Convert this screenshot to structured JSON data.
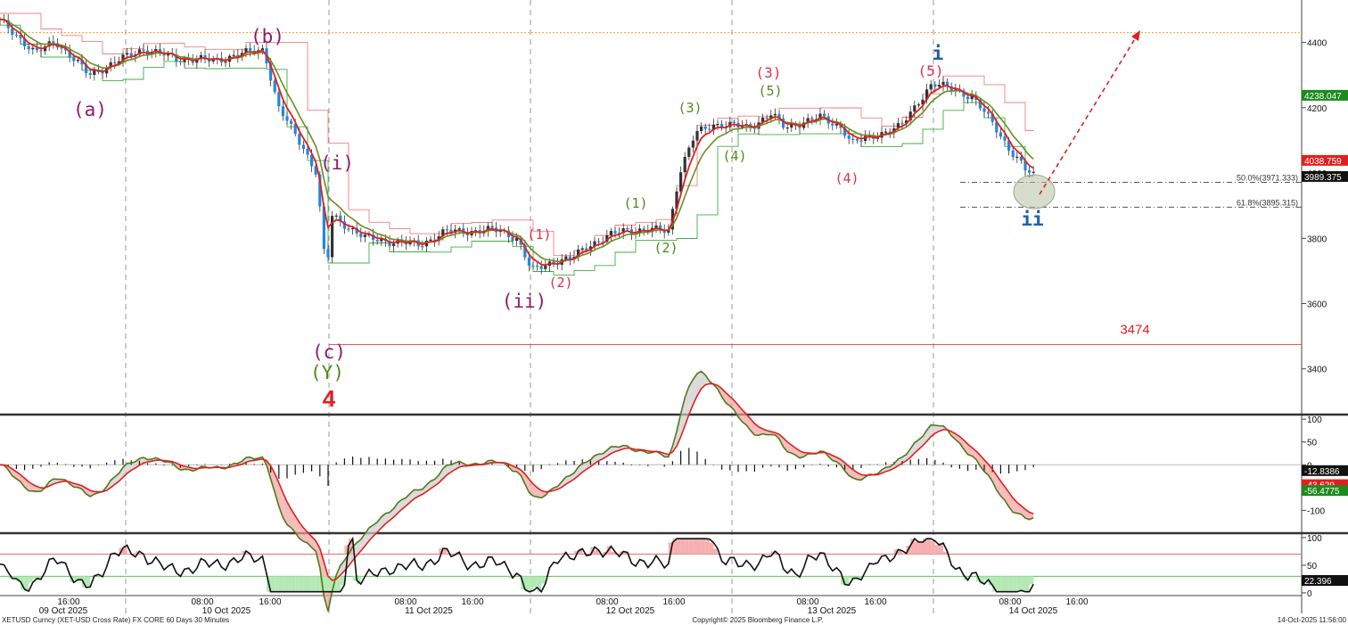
{
  "chart_data": [
    {
      "type": "candlestick",
      "panel": "price",
      "y_ticks": [
        "4400",
        "4200",
        "4000",
        "3800",
        "3600",
        "3400"
      ],
      "ylim": [
        3260,
        4530
      ],
      "price_tags": [
        {
          "label": "4238.047",
          "value": 4238.047,
          "color": "#1d8a1d"
        },
        {
          "label": "4038.759",
          "value": 4038.759,
          "color": "#e02020"
        },
        {
          "label": "3989.375",
          "value": 3989.375,
          "color": "#111111"
        }
      ],
      "levels": [
        {
          "label": "50.0%(3971.333)",
          "value": 3971.333
        },
        {
          "label": "61.8%(3895.315)",
          "value": 3895.315
        }
      ],
      "support_label": "3474",
      "support_value": 3474,
      "resistance_value": 4430,
      "wave_labels": [
        {
          "text": "(a)",
          "color": "#8e1b6b"
        },
        {
          "text": "(b)",
          "color": "#8e1b6b"
        },
        {
          "text": "(i)",
          "color": "#8e1b6b"
        },
        {
          "text": "(c)",
          "color": "#8e1b6b"
        },
        {
          "text": "(Y)",
          "color": "#4f8a1a"
        },
        {
          "text": "4",
          "color": "#e02020"
        },
        {
          "text": "(ii)",
          "color": "#8e1b6b"
        },
        {
          "text": "(1)",
          "color": "#e0304a"
        },
        {
          "text": "(2)",
          "color": "#e0304a"
        },
        {
          "text": "(1)",
          "color": "#4f8a1a"
        },
        {
          "text": "(2)",
          "color": "#4f8a1a"
        },
        {
          "text": "(3)",
          "color": "#4f8a1a"
        },
        {
          "text": "(4)",
          "color": "#4f8a1a"
        },
        {
          "text": "(3)",
          "color": "#e0304a"
        },
        {
          "text": "(5)",
          "color": "#4f8a1a"
        },
        {
          "text": "(4)",
          "color": "#e0304a"
        },
        {
          "text": "(5)",
          "color": "#e0304a"
        },
        {
          "text": "i",
          "color": "#1f5fa8"
        },
        {
          "text": "ii",
          "color": "#1f5fa8"
        }
      ]
    },
    {
      "type": "line",
      "panel": "oscillator",
      "y_ticks": [
        "100",
        "50",
        "0",
        "-100"
      ],
      "ylim": [
        -150,
        110
      ],
      "price_tags": [
        {
          "label": "-12.8386",
          "value": -12.8386,
          "color": "#111111"
        },
        {
          "label": "-43.629",
          "value": -43.629,
          "color": "#e02020"
        },
        {
          "label": "-56.4775",
          "value": -56.4775,
          "color": "#1d8a1d"
        }
      ]
    },
    {
      "type": "line",
      "panel": "rsi",
      "y_ticks": [
        "100",
        "50",
        "0"
      ],
      "ylim": [
        -5,
        108
      ],
      "upper_band": 70,
      "lower_band": 30,
      "price_tags": [
        {
          "label": "22.396",
          "value": 22.396,
          "color": "#111111"
        }
      ]
    }
  ],
  "x_axis": {
    "time_ticks": [
      "16:00",
      "08:00",
      "16:00",
      "08:00",
      "16:00",
      "08:00",
      "16:00",
      "08:00",
      "16:00",
      "08:00",
      "16:00"
    ],
    "date_labels": [
      "09 Oct 2025",
      "10 Oct 2025",
      "11 Oct 2025",
      "12 Oct 2025",
      "13 Oct 2025",
      "14 Oct 2025"
    ]
  },
  "footer": {
    "left": "XETUSD Curncy (XET-USD Cross Rate) FX CORE 60 Days 30 Minutes",
    "center": "Copyright© 2025 Bloomberg Finance L.P.",
    "right": "14-Oct-2025 11:56:00"
  },
  "colors": {
    "up_candle": "#333333",
    "down_candle": "#1e88e5",
    "ma_fast": "#e02020",
    "ma_slow": "#6b8e23",
    "upper_step": "#f08080",
    "lower_step": "#3cb043",
    "fib_line": "#555555",
    "projection": "#e02020",
    "resistance": "#f0a030",
    "support": "#e02020"
  }
}
